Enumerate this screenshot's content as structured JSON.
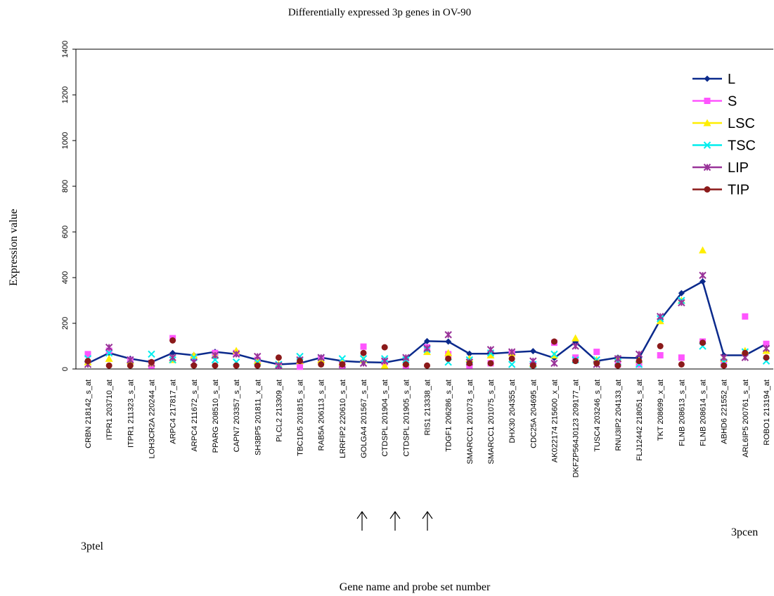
{
  "chart_data": {
    "type": "line",
    "title": "Differentially expressed 3p genes in OV-90",
    "y_label": "Expression value",
    "x_label": "Gene name and probe set number",
    "annotations": [
      "3ptel",
      "3pcen"
    ],
    "categories": [
      "CRBN 218142_s_at",
      "ITPR1 203710_at",
      "ITPR1 211323_s_at",
      "LOH3CR2A 220244_at",
      "ARPC4 217817_at",
      "ARPC4 211672_s_at",
      "PPARG 208510_s_at",
      "CAPN7 203357_s_at",
      "SH3BP5 201811_x_at",
      "PLCL2 213309_at",
      "TBC1D5 201815_s_at",
      "RAB5A 206113_s_at",
      "LRRFIP2 220610_s_at",
      "GOLGA4 201567_s_at",
      "CTDSPL 201904_s_at",
      "CTDSPL 201905_s_at",
      "RIS1 213338_at",
      "TDGF1 206286_s_at",
      "SMARCC1 201073_s_at",
      "SMARCC1 201075_s_at",
      "DHX30 204355_at",
      "CDC25A 204695_at",
      "AK022174 215600_x_at",
      "DKFZP564J0123 209177_at",
      "TUSC4 203246_s_at",
      "RNU3IP2 204133_at",
      "FLJ12442 218051_s_at",
      "TKT 208699_x_at",
      "FLNB 208613_s_at",
      "FLNB 208614_s_at",
      "ABHD6 221552_at",
      "ARL6IP5 200761_s_at",
      "ROBO1 213194_at"
    ],
    "series": [
      {
        "name": "L",
        "color": "#0b2a8c",
        "marker": "diamond",
        "line": true,
        "values": [
          25,
          70,
          45,
          30,
          70,
          60,
          75,
          65,
          40,
          20,
          25,
          50,
          35,
          30,
          28,
          45,
          122,
          120,
          67,
          67,
          73,
          78,
          48,
          118,
          35,
          50,
          48,
          215,
          332,
          383,
          60,
          60,
          110
        ]
      },
      {
        "name": "S",
        "color": "#ff55ff",
        "marker": "square",
        "line": false,
        "values": [
          65,
          80,
          40,
          15,
          135,
          50,
          70,
          70,
          40,
          15,
          10,
          45,
          15,
          98,
          30,
          15,
          95,
          65,
          15,
          25,
          70,
          20,
          115,
          50,
          75,
          20,
          20,
          60,
          50,
          120,
          20,
          230,
          110
        ]
      },
      {
        "name": "LSC",
        "color": "#ffee00",
        "marker": "triangle",
        "line": false,
        "values": [
          30,
          45,
          35,
          25,
          40,
          60,
          60,
          80,
          35,
          20,
          35,
          40,
          30,
          40,
          15,
          30,
          75,
          70,
          45,
          60,
          70,
          25,
          60,
          135,
          40,
          45,
          40,
          210,
          300,
          520,
          45,
          80,
          80
        ]
      },
      {
        "name": "TSC",
        "color": "#00eeee",
        "marker": "x",
        "line": false,
        "values": [
          45,
          70,
          40,
          65,
          40,
          50,
          40,
          30,
          30,
          20,
          55,
          50,
          45,
          45,
          45,
          40,
          85,
          30,
          40,
          70,
          20,
          20,
          65,
          40,
          40,
          30,
          20,
          220,
          300,
          100,
          30,
          75,
          35
        ]
      },
      {
        "name": "LIP",
        "color": "#993399",
        "marker": "star",
        "line": false,
        "values": [
          20,
          95,
          40,
          25,
          50,
          30,
          60,
          65,
          55,
          15,
          40,
          50,
          20,
          25,
          35,
          50,
          90,
          150,
          30,
          85,
          75,
          35,
          25,
          100,
          20,
          45,
          65,
          230,
          290,
          410,
          50,
          50,
          90
        ]
      },
      {
        "name": "TIP",
        "color": "#8b1a1a",
        "marker": "circle",
        "line": false,
        "values": [
          35,
          15,
          15,
          30,
          125,
          15,
          15,
          15,
          15,
          50,
          35,
          20,
          20,
          70,
          95,
          20,
          15,
          45,
          25,
          25,
          45,
          15,
          120,
          35,
          25,
          15,
          35,
          100,
          20,
          115,
          15,
          70,
          50
        ]
      }
    ],
    "ylim": [
      0,
      1400
    ],
    "yticks": [
      0,
      200,
      400,
      600,
      800,
      1000,
      1200,
      1400
    ],
    "grid": false,
    "legend": "upper-right"
  }
}
